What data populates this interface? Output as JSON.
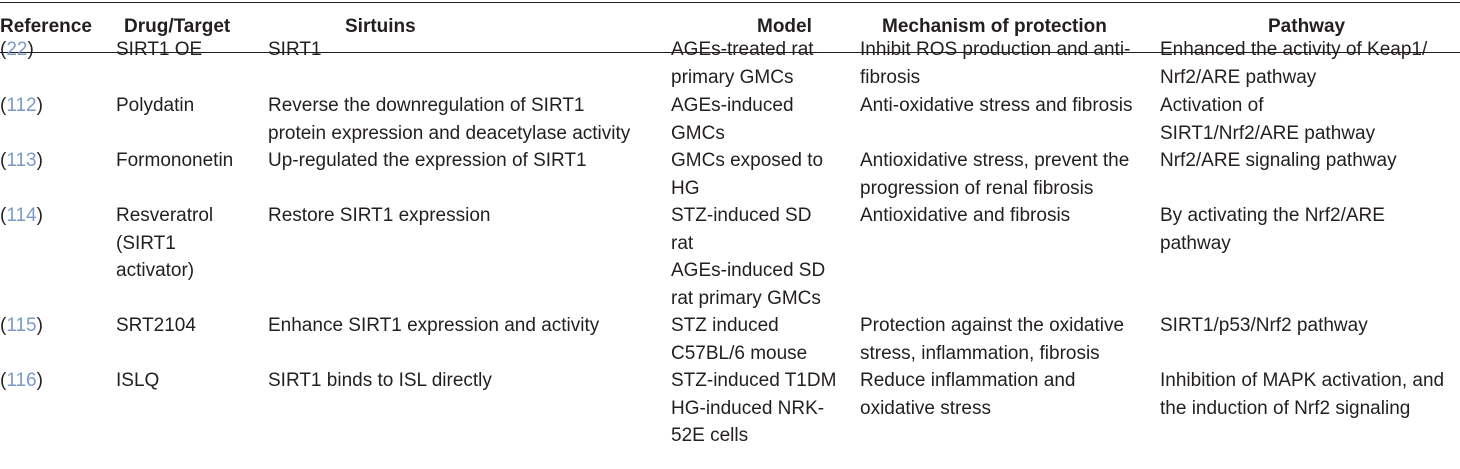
{
  "headers": {
    "reference": "Reference",
    "drug": "Drug/Target",
    "sirtuins": "Sirtuins",
    "model": "Model",
    "mechanism": "Mechanism of protection",
    "pathway": "Pathway"
  },
  "colors": {
    "text": "#231f20",
    "reference_link": "#7a9bc7"
  },
  "rows": [
    {
      "ref": "22",
      "drug": [
        "SIRT1 OE"
      ],
      "sirtuins": [
        "SIRT1"
      ],
      "model": [
        "AGEs-treated rat",
        "primary GMCs"
      ],
      "mechanism": [
        "Inhibit ROS production and anti-",
        "fibrosis"
      ],
      "pathway": [
        "Enhanced the activity of Keap1/",
        "Nrf2/ARE pathway"
      ]
    },
    {
      "ref": "112",
      "drug": [
        "Polydatin"
      ],
      "sirtuins": [
        "Reverse the downregulation of SIRT1",
        "protein expression and deacetylase activity"
      ],
      "model": [
        "AGEs-induced",
        "GMCs"
      ],
      "mechanism": [
        "Anti-oxidative stress and fibrosis"
      ],
      "pathway": [
        "Activation of",
        "SIRT1/Nrf2/ARE pathway"
      ]
    },
    {
      "ref": "113",
      "drug": [
        "Formononetin"
      ],
      "sirtuins": [
        "Up-regulated the expression of SIRT1"
      ],
      "model": [
        "GMCs exposed to",
        "HG"
      ],
      "mechanism": [
        "Antioxidative stress, prevent the",
        "progression of renal fibrosis"
      ],
      "pathway": [
        "Nrf2/ARE signaling pathway"
      ]
    },
    {
      "ref": "114",
      "drug": [
        "Resveratrol",
        "(SIRT1",
        "activator)"
      ],
      "sirtuins": [
        "Restore SIRT1 expression"
      ],
      "model": [
        "STZ-induced SD",
        "rat",
        "AGEs-induced SD",
        "rat primary GMCs"
      ],
      "mechanism": [
        "Antioxidative and fibrosis"
      ],
      "pathway": [
        "By activating the Nrf2/ARE",
        "pathway"
      ]
    },
    {
      "ref": "115",
      "drug": [
        "SRT2104"
      ],
      "sirtuins": [
        "Enhance SIRT1 expression and activity"
      ],
      "model": [
        "STZ induced",
        "C57BL/6 mouse"
      ],
      "mechanism": [
        "Protection against the oxidative",
        "stress, inflammation, fibrosis"
      ],
      "pathway": [
        "SIRT1/p53/Nrf2 pathway"
      ]
    },
    {
      "ref": "116",
      "drug": [
        "ISLQ"
      ],
      "sirtuins": [
        "SIRT1 binds to ISL directly"
      ],
      "model": [
        "STZ-induced T1DM",
        "HG-induced NRK-",
        "52E cells"
      ],
      "mechanism": [
        "Reduce inflammation and",
        "oxidative stress"
      ],
      "pathway": [
        "Inhibition of MAPK activation, and",
        "the induction of Nrf2 signaling"
      ]
    }
  ]
}
